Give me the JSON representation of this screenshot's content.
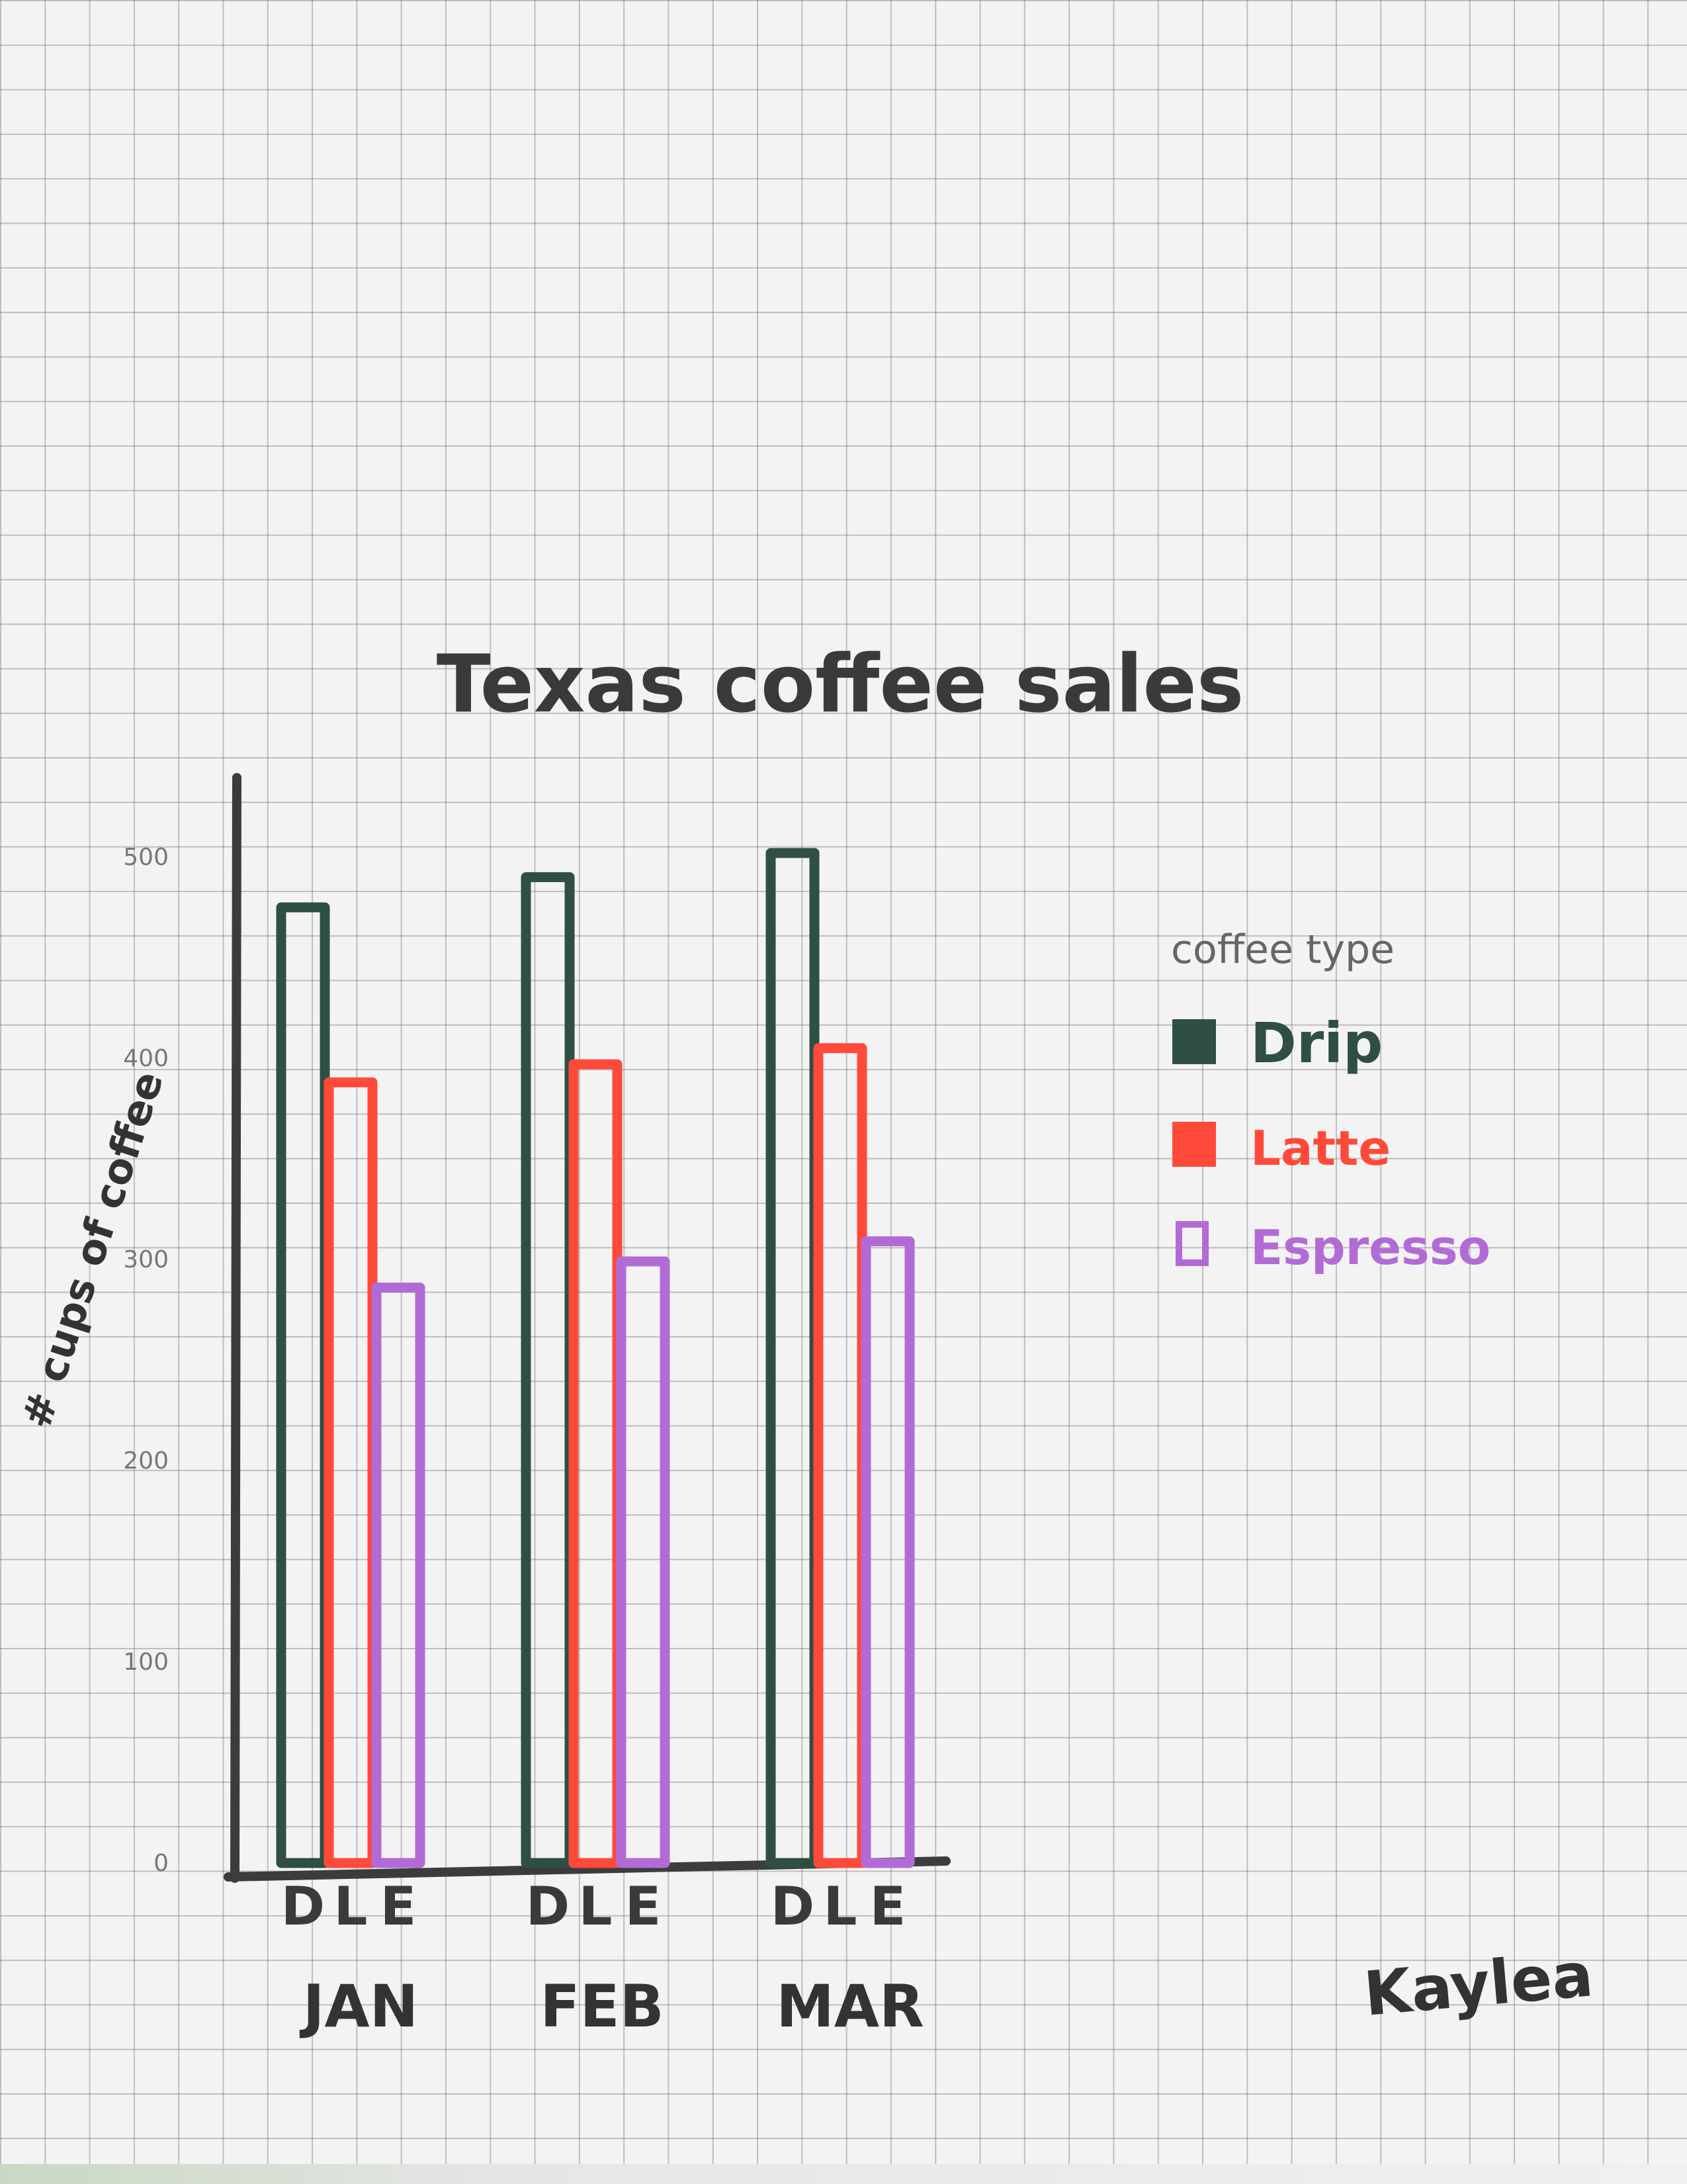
{
  "chart_data": {
    "type": "bar",
    "title": "Texas coffee sales",
    "ylabel": "# cups of coffee",
    "xlabel": "",
    "categories": [
      "JAN",
      "FEB",
      "MAR"
    ],
    "bar_labels": [
      "D",
      "L",
      "E"
    ],
    "series": [
      {
        "name": "Drip",
        "values": [
          475,
          490,
          502
        ],
        "color": "#2f4f45"
      },
      {
        "name": "Latte",
        "values": [
          388,
          397,
          405
        ],
        "color": "#ff4a3a"
      },
      {
        "name": "Espresso",
        "values": [
          286,
          299,
          309
        ],
        "color": "#b26bd6"
      }
    ],
    "yticks": [
      0,
      100,
      200,
      300,
      400,
      500
    ],
    "ylim": [
      0,
      520
    ],
    "grid": true,
    "legend": {
      "title": "coffee type",
      "position": "right"
    }
  },
  "signature": "Kaylea"
}
